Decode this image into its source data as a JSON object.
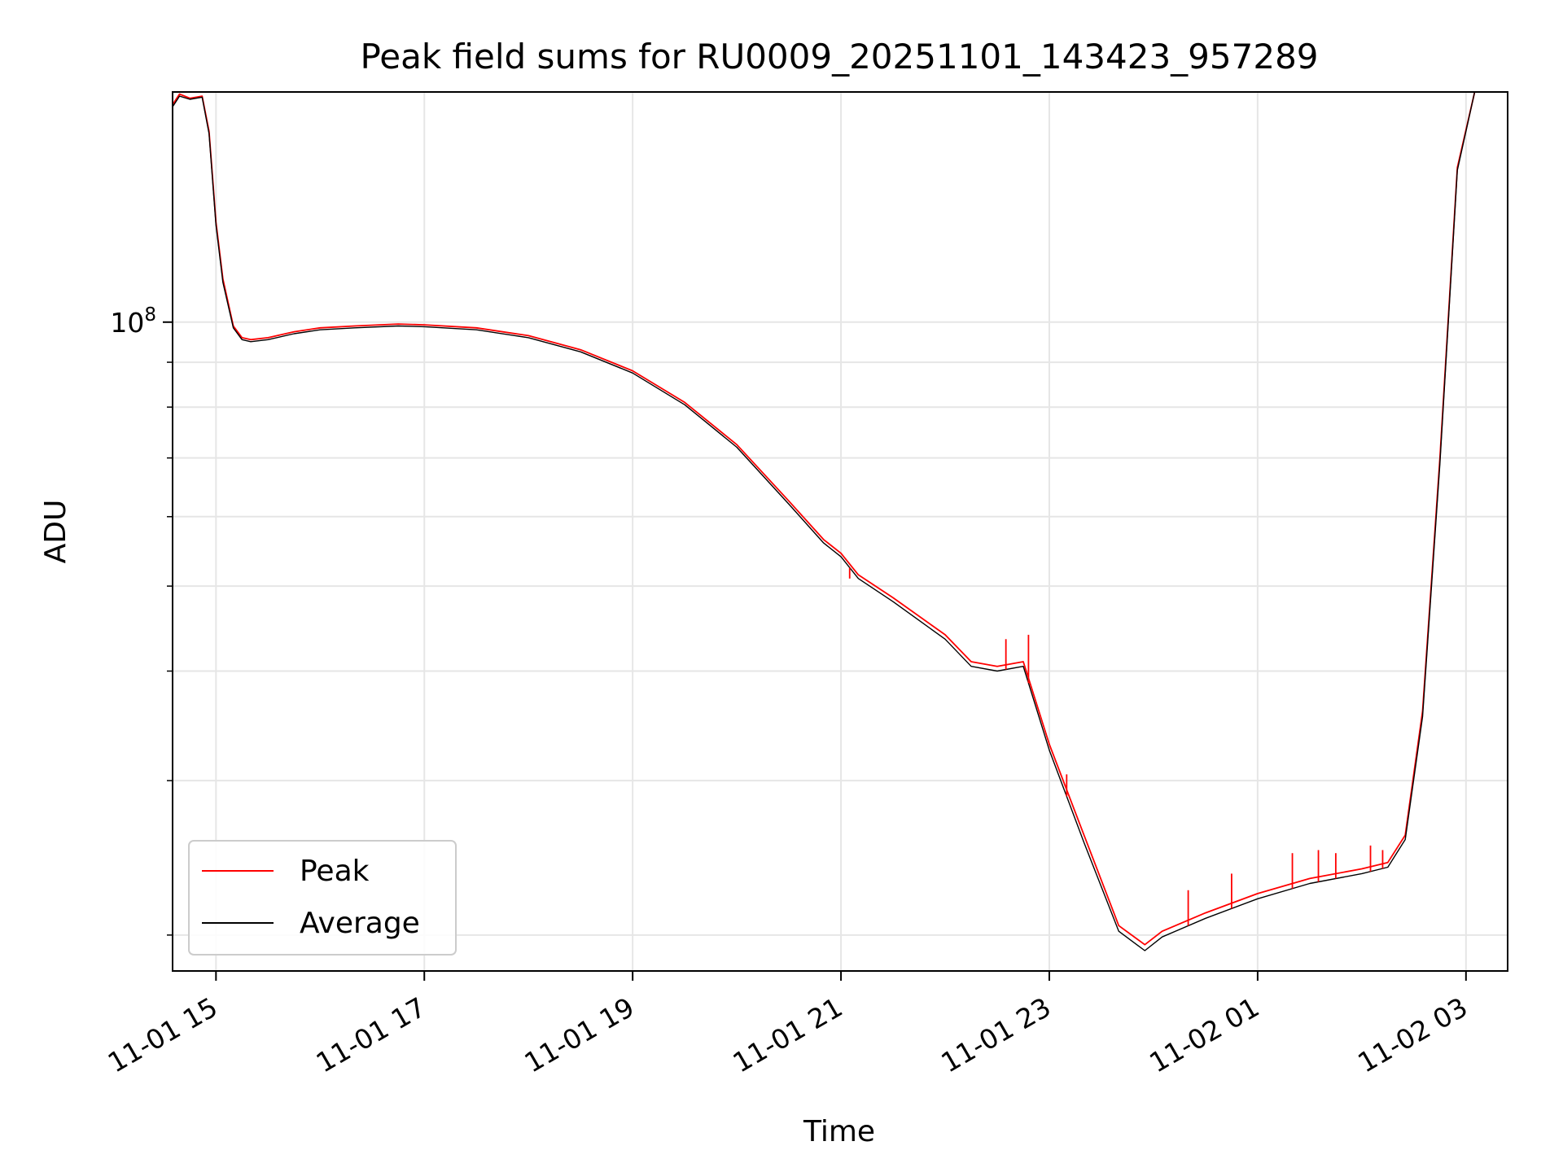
{
  "chart_data": {
    "type": "line",
    "title": "Peak field sums for RU0009_20251101_143423_957289",
    "xlabel": "Time",
    "ylabel": "ADU",
    "yscale": "log",
    "grid": true,
    "legend_position": "lower-left",
    "xlim": [
      "2025-11-01 14:35",
      "2025-11-02 03:24"
    ],
    "ylim": [
      18200000,
      183000000
    ],
    "x_ticks": [
      {
        "value": "2025-11-01 15:00",
        "label": "11-01 15"
      },
      {
        "value": "2025-11-01 17:00",
        "label": "11-01 17"
      },
      {
        "value": "2025-11-01 19:00",
        "label": "11-01 19"
      },
      {
        "value": "2025-11-01 21:00",
        "label": "11-01 21"
      },
      {
        "value": "2025-11-01 23:00",
        "label": "11-01 23"
      },
      {
        "value": "2025-11-02 01:00",
        "label": "11-02 01"
      },
      {
        "value": "2025-11-02 03:00",
        "label": "11-02 03"
      }
    ],
    "y_ticks": [
      {
        "value": 100000000,
        "base": "10",
        "exp": "8"
      }
    ],
    "y_minor_ticks": [
      20000000,
      30000000,
      40000000,
      50000000,
      60000000,
      70000000,
      80000000,
      90000000,
      200000000
    ],
    "series": [
      {
        "name": "Peak",
        "color": "#ff0000",
        "x": [
          "2025-11-01 14:35",
          "2025-11-01 14:39",
          "2025-11-01 14:45",
          "2025-11-01 14:52",
          "2025-11-01 14:56",
          "2025-11-01 15:00",
          "2025-11-01 15:04",
          "2025-11-01 15:10",
          "2025-11-01 15:15",
          "2025-11-01 15:20",
          "2025-11-01 15:30",
          "2025-11-01 15:45",
          "2025-11-01 16:00",
          "2025-11-01 16:20",
          "2025-11-01 16:45",
          "2025-11-01 17:00",
          "2025-11-01 17:30",
          "2025-11-01 18:00",
          "2025-11-01 18:30",
          "2025-11-01 19:00",
          "2025-11-01 19:30",
          "2025-11-01 20:00",
          "2025-11-01 20:30",
          "2025-11-01 20:50",
          "2025-11-01 21:00",
          "2025-11-01 21:10",
          "2025-11-01 21:30",
          "2025-11-01 22:00",
          "2025-11-01 22:15",
          "2025-11-01 22:30",
          "2025-11-01 22:45",
          "2025-11-01 23:00",
          "2025-11-01 23:20",
          "2025-11-01 23:40",
          "2025-11-01 23:55",
          "2025-11-02 00:05",
          "2025-11-02 00:30",
          "2025-11-02 01:00",
          "2025-11-02 01:30",
          "2025-11-02 02:00",
          "2025-11-02 02:15",
          "2025-11-02 02:25",
          "2025-11-02 02:35",
          "2025-11-02 02:45",
          "2025-11-02 02:55",
          "2025-11-02 03:05",
          "2025-11-02 03:15"
        ],
        "y": [
          177000000,
          182000000,
          180000000,
          181000000,
          165000000,
          130000000,
          112000000,
          99000000,
          96000000,
          95500000,
          96000000,
          97500000,
          98500000,
          99000000,
          99500000,
          99300000,
          98500000,
          96500000,
          93000000,
          88000000,
          81000000,
          72500000,
          62500000,
          56500000,
          54500000,
          51500000,
          48500000,
          44000000,
          41000000,
          40500000,
          41000000,
          33000000,
          26000000,
          20500000,
          19500000,
          20200000,
          21200000,
          22300000,
          23200000,
          23800000,
          24200000,
          26000000,
          36000000,
          70000000,
          150000000,
          183000000,
          183000000
        ],
        "spikes": [
          {
            "x": "2025-11-01 21:05",
            "y": 51000000
          },
          {
            "x": "2025-11-01 22:35",
            "y": 43500000
          },
          {
            "x": "2025-11-01 22:48",
            "y": 44000000
          },
          {
            "x": "2025-11-01 23:10",
            "y": 30500000
          },
          {
            "x": "2025-11-02 00:20",
            "y": 22500000
          },
          {
            "x": "2025-11-02 00:45",
            "y": 23500000
          },
          {
            "x": "2025-11-02 01:20",
            "y": 24800000
          },
          {
            "x": "2025-11-02 01:35",
            "y": 25000000
          },
          {
            "x": "2025-11-02 01:45",
            "y": 24800000
          },
          {
            "x": "2025-11-02 02:05",
            "y": 25300000
          },
          {
            "x": "2025-11-02 02:12",
            "y": 25000000
          }
        ]
      },
      {
        "name": "Average",
        "color": "#000000",
        "x": [
          "2025-11-01 14:35",
          "2025-11-01 14:39",
          "2025-11-01 14:45",
          "2025-11-01 14:52",
          "2025-11-01 14:56",
          "2025-11-01 15:00",
          "2025-11-01 15:04",
          "2025-11-01 15:10",
          "2025-11-01 15:15",
          "2025-11-01 15:20",
          "2025-11-01 15:30",
          "2025-11-01 15:45",
          "2025-11-01 16:00",
          "2025-11-01 16:20",
          "2025-11-01 16:45",
          "2025-11-01 17:00",
          "2025-11-01 17:30",
          "2025-11-01 18:00",
          "2025-11-01 18:30",
          "2025-11-01 19:00",
          "2025-11-01 19:30",
          "2025-11-01 20:00",
          "2025-11-01 20:30",
          "2025-11-01 20:50",
          "2025-11-01 21:00",
          "2025-11-01 21:10",
          "2025-11-01 21:30",
          "2025-11-01 22:00",
          "2025-11-01 22:15",
          "2025-11-01 22:30",
          "2025-11-01 22:45",
          "2025-11-01 23:00",
          "2025-11-01 23:20",
          "2025-11-01 23:40",
          "2025-11-01 23:55",
          "2025-11-02 00:05",
          "2025-11-02 00:30",
          "2025-11-02 01:00",
          "2025-11-02 01:30",
          "2025-11-02 02:00",
          "2025-11-02 02:15",
          "2025-11-02 02:25",
          "2025-11-02 02:35",
          "2025-11-02 02:45",
          "2025-11-02 02:55",
          "2025-11-02 03:05",
          "2025-11-02 03:15"
        ],
        "y": [
          176000000,
          181000000,
          179500000,
          180500000,
          164000000,
          129000000,
          111000000,
          98500000,
          95500000,
          95000000,
          95500000,
          97000000,
          98000000,
          98500000,
          99000000,
          98800000,
          98000000,
          96000000,
          92500000,
          87500000,
          80500000,
          72000000,
          62000000,
          56000000,
          54000000,
          51000000,
          48000000,
          43500000,
          40500000,
          40000000,
          40500000,
          32500000,
          25500000,
          20200000,
          19200000,
          19900000,
          20900000,
          22000000,
          22900000,
          23500000,
          23900000,
          25700000,
          35500000,
          69000000,
          149000000,
          183000000,
          183000000
        ]
      }
    ]
  }
}
